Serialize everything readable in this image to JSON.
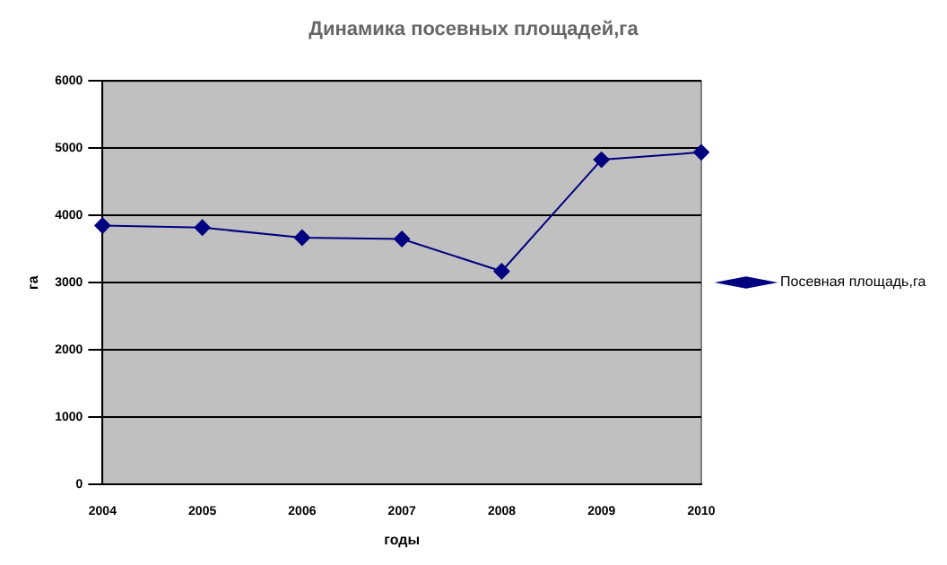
{
  "chart_data": {
    "type": "line",
    "title": "Динамика посевных площадей,га",
    "xlabel": "годы",
    "ylabel": "га",
    "categories": [
      "2004",
      "2005",
      "2006",
      "2007",
      "2008",
      "2009",
      "2010"
    ],
    "series": [
      {
        "name": "Посевная площадь,га",
        "color": "#000080",
        "values": [
          3850,
          3820,
          3670,
          3650,
          3170,
          4830,
          4940
        ]
      }
    ],
    "ylim": [
      0,
      6000
    ],
    "yticks": [
      0,
      1000,
      2000,
      3000,
      4000,
      5000,
      6000
    ],
    "grid": "y",
    "legend": "right",
    "marker": "diamond",
    "line_style": "solid"
  }
}
